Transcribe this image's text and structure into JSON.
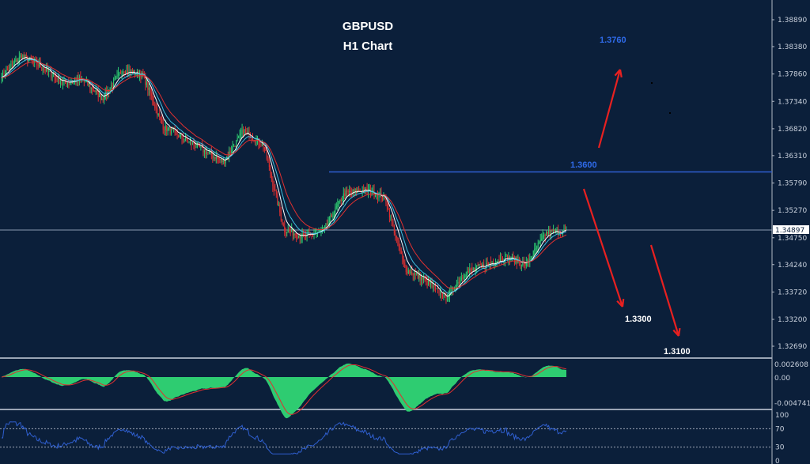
{
  "chart_data": {
    "type": "candlestick",
    "title": "GBPUSD",
    "subtitle": "H1 Chart",
    "price_axis": {
      "ticks": [
        "1.38890",
        "1.38380",
        "1.37860",
        "1.37340",
        "1.36820",
        "1.36310",
        "1.35790",
        "1.35270",
        "1.34750",
        "1.34240",
        "1.33720",
        "1.33200",
        "1.32690"
      ],
      "range": [
        1.3269,
        1.3889
      ]
    },
    "current_price": "1.34897",
    "price_path": [
      1.3784,
      1.3821,
      1.3799,
      1.3769,
      1.3776,
      1.3739,
      1.3794,
      1.3784,
      1.3686,
      1.3664,
      1.3641,
      1.3619,
      1.3679,
      1.3649,
      1.3491,
      1.3476,
      1.3491,
      1.3559,
      1.3566,
      1.3551,
      1.3416,
      1.3394,
      1.3359,
      1.3409,
      1.3424,
      1.3439,
      1.3424,
      1.3484,
      1.349
    ],
    "resistance_level": {
      "label": "1.3600",
      "value": 1.36
    },
    "targets": [
      {
        "label": "1.3760",
        "direction": "up",
        "color": "#2f6ae8"
      },
      {
        "label": "1.3300",
        "direction": "down",
        "color": "#ffffff"
      },
      {
        "label": "1.3100",
        "direction": "down",
        "color": "#ffffff"
      }
    ],
    "oscillator": {
      "ticks": [
        "0.002608",
        "0.00",
        "-0.004741"
      ],
      "range": [
        -0.004741,
        0.002608
      ]
    },
    "rsi": {
      "ticks": [
        "100",
        "70",
        "30",
        "0"
      ],
      "levels": [
        30,
        70
      ]
    }
  },
  "colors": {
    "background": "#0b1f3a",
    "bull": "#2ecc71",
    "bear": "#e03030",
    "histogram": "#2ecc71",
    "signal": "#e03030",
    "rsi": "#2f5fd0",
    "arrow": "#e82020",
    "level": "#2f5fd0"
  }
}
